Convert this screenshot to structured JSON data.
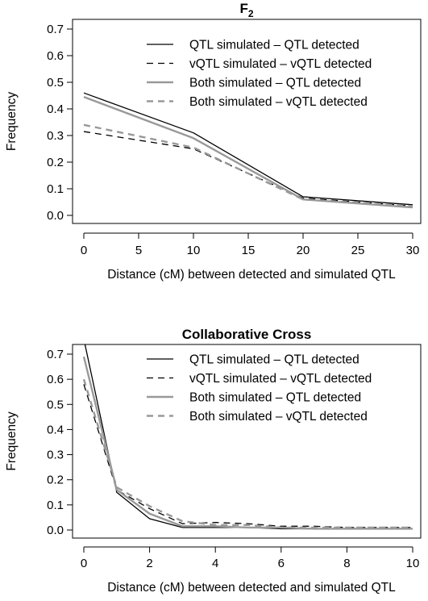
{
  "chart_data": [
    {
      "type": "line",
      "title": "F",
      "title_sub": "2",
      "xlabel": "Distance (cM) between detected and simulated QTL",
      "ylabel": "Frequency",
      "xlim": [
        0,
        30
      ],
      "ylim": [
        0,
        0.7
      ],
      "xticks": [
        0,
        5,
        10,
        15,
        20,
        25,
        30
      ],
      "yticks": [
        0.0,
        0.1,
        0.2,
        0.3,
        0.4,
        0.5,
        0.6,
        0.7
      ],
      "grid": false,
      "legend_position": "top-right",
      "x": [
        0,
        10,
        20,
        30
      ],
      "series": [
        {
          "name": "QTL simulated – QTL detected",
          "values": [
            0.46,
            0.31,
            0.07,
            0.04
          ],
          "color": "#000000",
          "dash": "solid",
          "width": 1.3
        },
        {
          "name": "vQTL simulated – vQTL detected",
          "values": [
            0.315,
            0.25,
            0.065,
            0.035
          ],
          "color": "#000000",
          "dash": "dashed",
          "width": 1.3
        },
        {
          "name": "Both simulated – QTL detected",
          "values": [
            0.445,
            0.29,
            0.06,
            0.03
          ],
          "color": "#999999",
          "dash": "solid",
          "width": 2.4
        },
        {
          "name": "Both simulated – vQTL detected",
          "values": [
            0.34,
            0.255,
            0.06,
            0.035
          ],
          "color": "#999999",
          "dash": "dashed",
          "width": 2.4
        }
      ]
    },
    {
      "type": "line",
      "title": "Collaborative Cross",
      "title_sub": "",
      "xlabel": "Distance (cM) between detected and simulated QTL",
      "ylabel": "Frequency",
      "xlim": [
        0,
        10
      ],
      "ylim": [
        0,
        0.7
      ],
      "xticks": [
        0,
        2,
        4,
        6,
        8,
        10
      ],
      "yticks": [
        0.0,
        0.1,
        0.2,
        0.3,
        0.4,
        0.5,
        0.6,
        0.7
      ],
      "grid": false,
      "legend_position": "top-right",
      "x": [
        0,
        1,
        2,
        3,
        4,
        5,
        6,
        7,
        8,
        9,
        10
      ],
      "series": [
        {
          "name": "QTL simulated – QTL detected",
          "values": [
            0.76,
            0.15,
            0.045,
            0.01,
            0.01,
            0.01,
            0.005,
            0.005,
            0.005,
            0.005,
            0.005
          ],
          "color": "#000000",
          "dash": "solid",
          "width": 1.3
        },
        {
          "name": "vQTL simulated – vQTL detected",
          "values": [
            0.58,
            0.16,
            0.085,
            0.025,
            0.03,
            0.025,
            0.015,
            0.015,
            0.01,
            0.01,
            0.01
          ],
          "color": "#000000",
          "dash": "dashed",
          "width": 1.3
        },
        {
          "name": "Both simulated – QTL detected",
          "values": [
            0.69,
            0.16,
            0.065,
            0.015,
            0.015,
            0.01,
            0.01,
            0.005,
            0.005,
            0.005,
            0.005
          ],
          "color": "#999999",
          "dash": "solid",
          "width": 2.4
        },
        {
          "name": "Both simulated – vQTL detected",
          "values": [
            0.6,
            0.17,
            0.095,
            0.035,
            0.02,
            0.02,
            0.01,
            0.01,
            0.01,
            0.01,
            0.01
          ],
          "color": "#999999",
          "dash": "dashed",
          "width": 2.4
        }
      ]
    }
  ]
}
